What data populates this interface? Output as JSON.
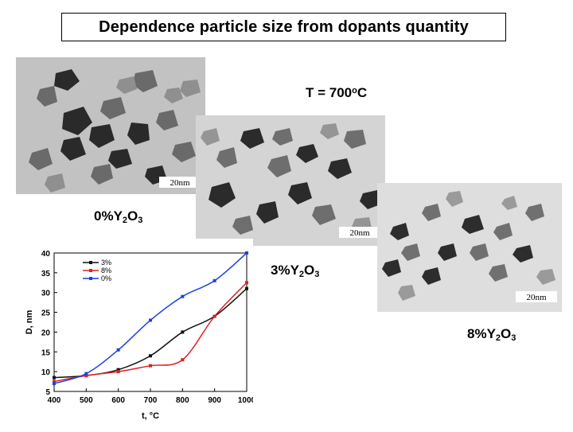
{
  "title": "Dependence particle size from dopants quantity",
  "temperature": {
    "prefix": "T = 700",
    "deg": "o",
    "unit": "C"
  },
  "images": [
    {
      "scale_bar": "20nm",
      "label_pre": "0%Y",
      "sub1": "2",
      "mid": "O",
      "sub2": "3"
    },
    {
      "scale_bar": "20nm",
      "label_pre": "3%Y",
      "sub1": "2",
      "mid": "O",
      "sub2": "3"
    },
    {
      "scale_bar": "20nm",
      "label_pre": "8%Y",
      "sub1": "2",
      "mid": "O",
      "sub2": "3"
    }
  ],
  "chart_data": {
    "type": "line",
    "x": [
      400,
      500,
      600,
      700,
      800,
      900,
      1000
    ],
    "xlabel": "t, °C",
    "ylabel": "D, nm",
    "xlim": [
      400,
      1000
    ],
    "ylim": [
      5,
      40
    ],
    "yticks": [
      5,
      10,
      15,
      20,
      25,
      30,
      35,
      40
    ],
    "xticks": [
      400,
      500,
      600,
      700,
      800,
      900,
      1000
    ],
    "series": [
      {
        "name": "3%",
        "color": "#111111",
        "values": [
          8.5,
          9.0,
          10.5,
          14.0,
          20.0,
          24.0,
          31.0
        ]
      },
      {
        "name": "8%",
        "color": "#e02020",
        "values": [
          7.5,
          9.0,
          10.0,
          11.5,
          13.0,
          24.0,
          32.5
        ]
      },
      {
        "name": "0%",
        "color": "#1f3fe0",
        "values": [
          7.0,
          9.5,
          15.5,
          23.0,
          29.0,
          33.0,
          40.0
        ]
      }
    ]
  }
}
